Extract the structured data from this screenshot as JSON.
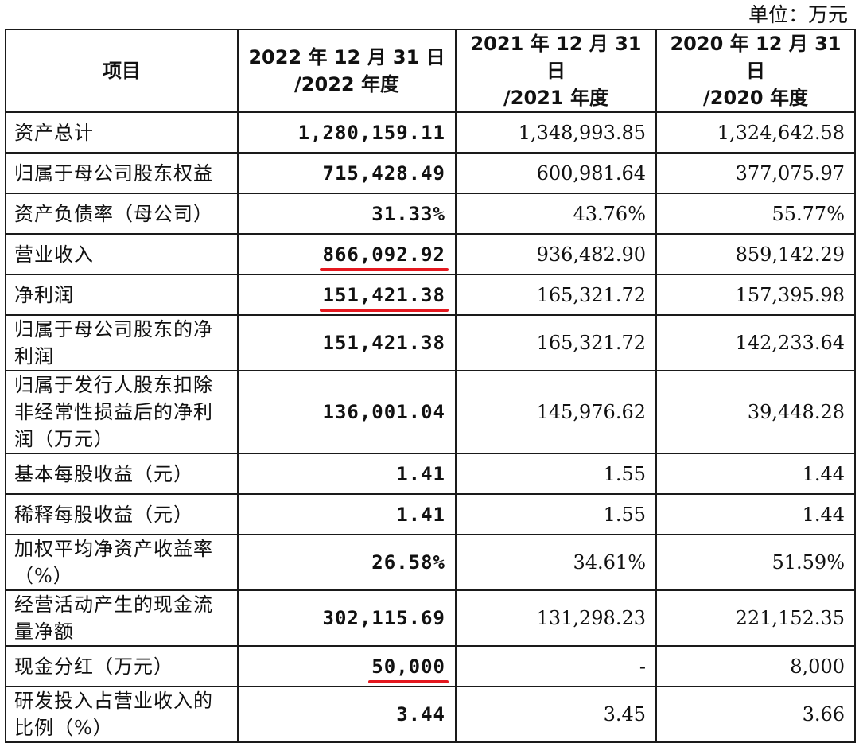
{
  "unit_note": "单位：万元",
  "headers": [
    {
      "line1": "项目",
      "line2": ""
    },
    {
      "line1": "2022 年 12 月 31 日",
      "line2": "/2022 年度"
    },
    {
      "line1": "2021 年 12 月 31 日",
      "line2": "/2021 年度"
    },
    {
      "line1": "2020 年 12 月 31 日",
      "line2": "/2020 年度"
    }
  ],
  "rows": [
    {
      "item": "资产总计",
      "y2022": "1,280,159.11",
      "y2021": "1,348,993.85",
      "y2020": "1,324,642.58",
      "underline": false
    },
    {
      "item": "归属于母公司股东权益",
      "y2022": "715,428.49",
      "y2021": "600,981.64",
      "y2020": "377,075.97",
      "underline": false
    },
    {
      "item": "资产负债率（母公司）",
      "y2022": "31.33%",
      "y2021": "43.76%",
      "y2020": "55.77%",
      "underline": false
    },
    {
      "item": "营业收入",
      "y2022": "866,092.92",
      "y2021": "936,482.90",
      "y2020": "859,142.29",
      "underline": true
    },
    {
      "item": "净利润",
      "y2022": "151,421.38",
      "y2021": "165,321.72",
      "y2020": "157,395.98",
      "underline": true
    },
    {
      "item": "归属于母公司股东的净利润",
      "y2022": "151,421.38",
      "y2021": "165,321.72",
      "y2020": "142,233.64",
      "underline": false
    },
    {
      "item": "归属于发行人股东扣除非经常性损益后的净利润（万元）",
      "y2022": "136,001.04",
      "y2021": "145,976.62",
      "y2020": "39,448.28",
      "underline": false
    },
    {
      "item": "基本每股收益（元）",
      "y2022": "1.41",
      "y2021": "1.55",
      "y2020": "1.44",
      "underline": false
    },
    {
      "item": "稀释每股收益（元）",
      "y2022": "1.41",
      "y2021": "1.55",
      "y2020": "1.44",
      "underline": false
    },
    {
      "item": "加权平均净资产收益率（%）",
      "y2022": "26.58%",
      "y2021": "34.61%",
      "y2020": "51.59%",
      "underline": false
    },
    {
      "item": "经营活动产生的现金流量净额",
      "y2022": "302,115.69",
      "y2021": "131,298.23",
      "y2020": "221,152.35",
      "underline": false
    },
    {
      "item": "现金分红（万元）",
      "y2022": "50,000",
      "y2021": "-",
      "y2020": "8,000",
      "underline": true
    },
    {
      "item": "研发投入占营业收入的比例（%）",
      "y2022": "3.44",
      "y2021": "3.45",
      "y2020": "3.66",
      "underline": false
    }
  ],
  "colors": {
    "underline": "#e5181f",
    "border": "#1a1a1a"
  }
}
